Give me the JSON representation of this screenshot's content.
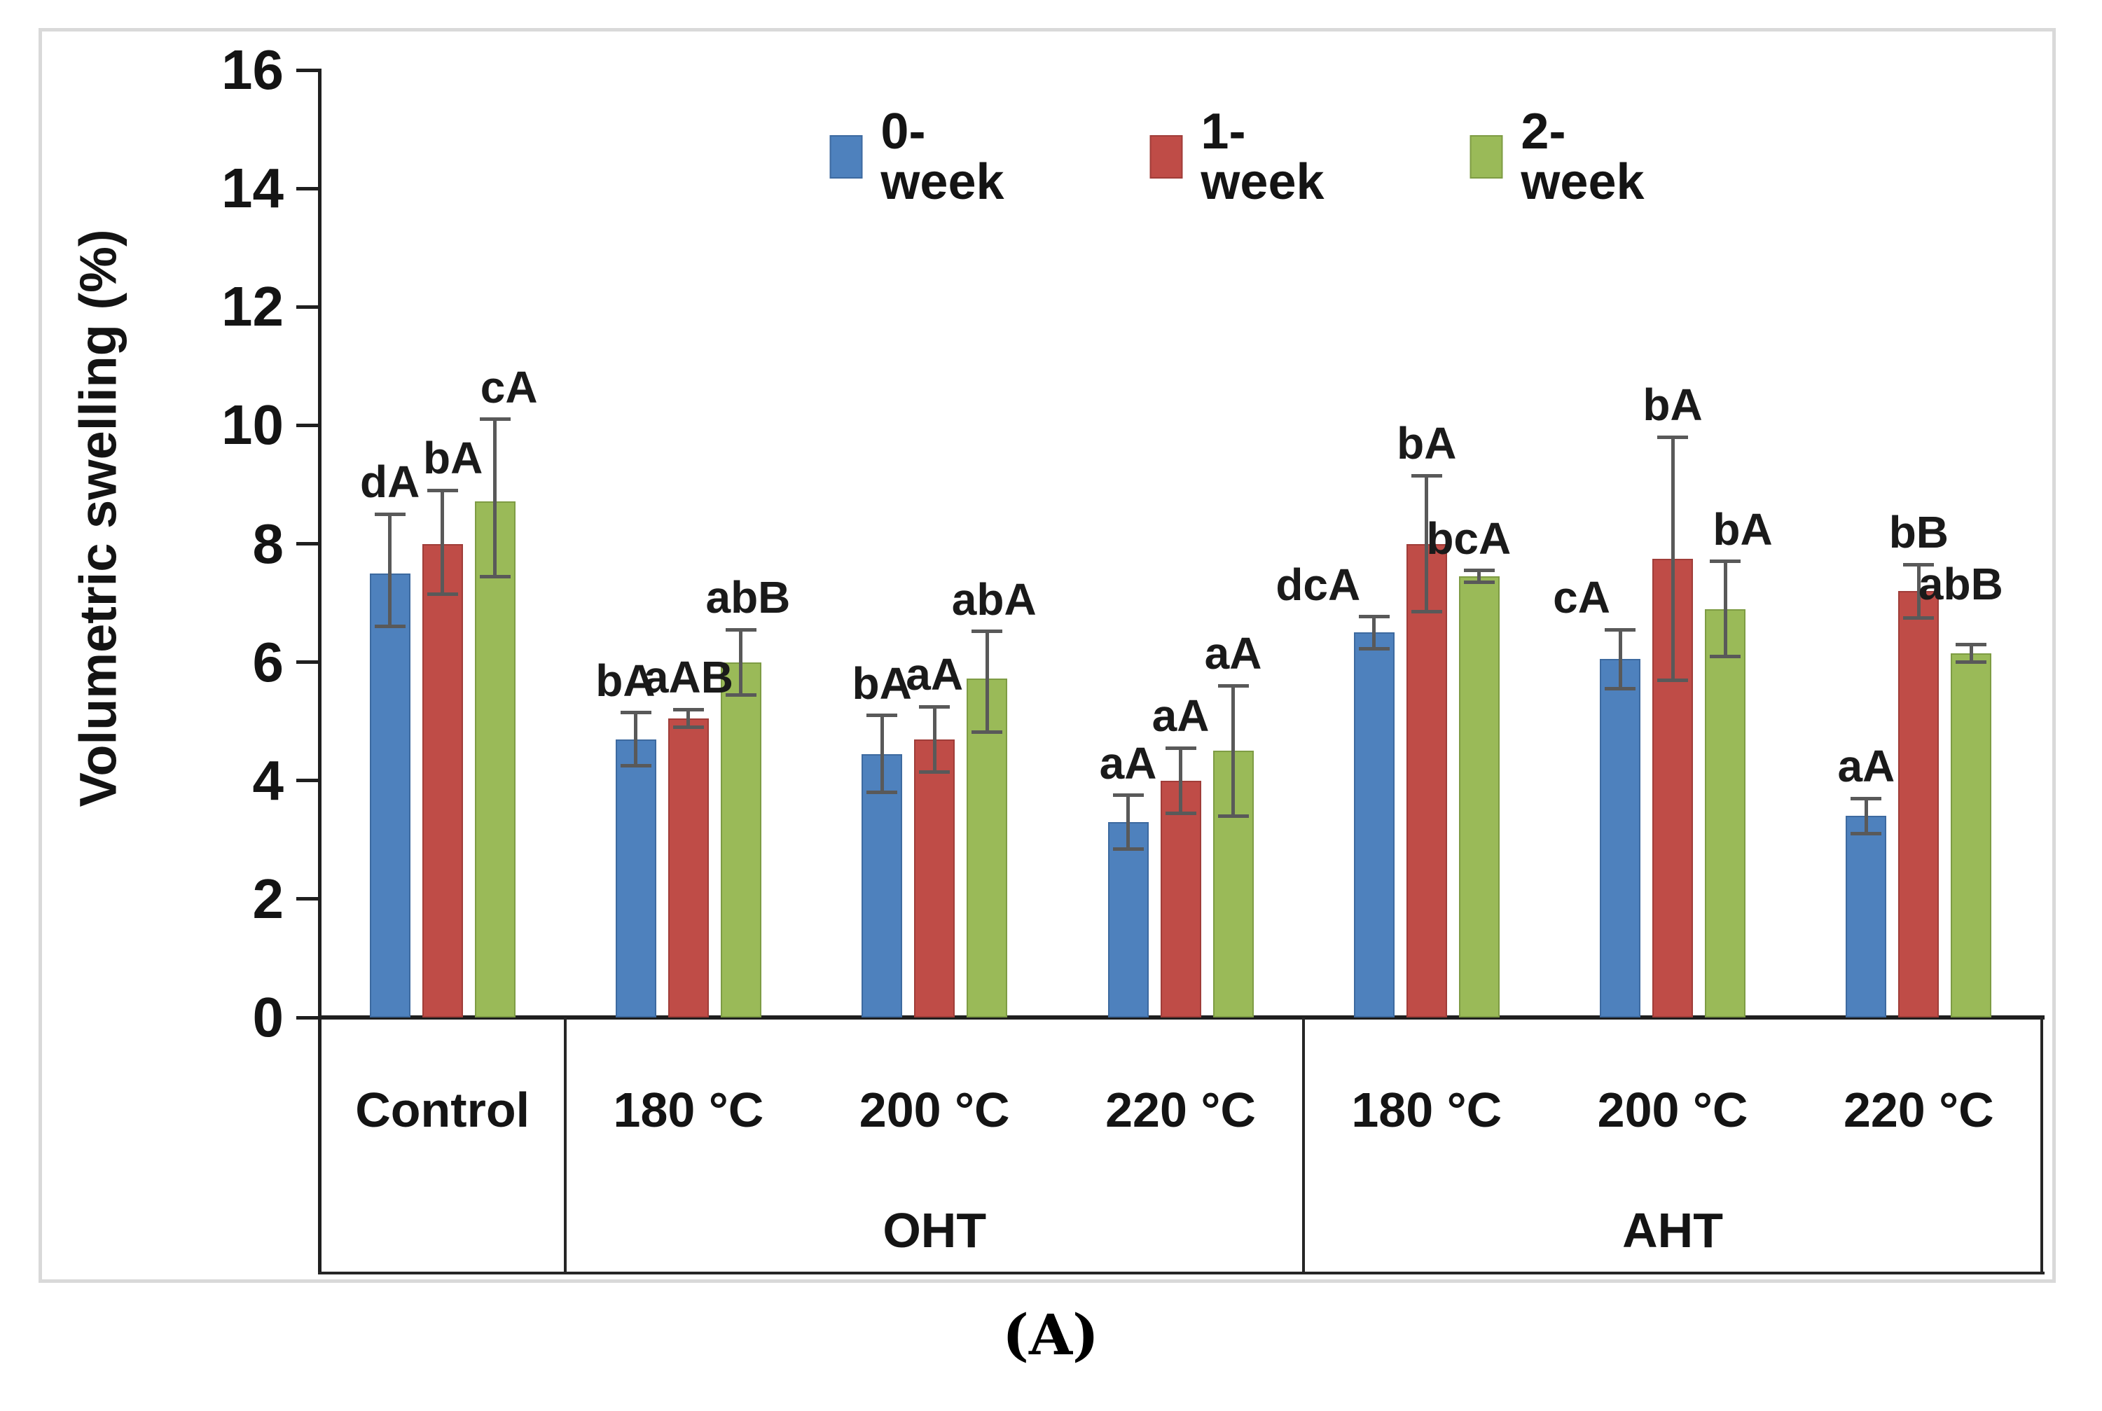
{
  "figure": {
    "caption": "(A)",
    "y_ticks": [
      "0",
      "2",
      "4",
      "6",
      "8",
      "10",
      "12",
      "14",
      "16"
    ],
    "colors": {
      "series": [
        "#4e81bd",
        "#bf4c47",
        "#9aba58"
      ],
      "series_borders": [
        "#3d6aa0",
        "#a03d39",
        "#7e9c44"
      ],
      "error_bar": "#595959",
      "axis": "#1f1f1f",
      "figure_border": "#d9d9d9"
    }
  },
  "chart_data": {
    "type": "bar",
    "title": "",
    "xlabel": "",
    "ylabel": "Volumetric swelling (%)",
    "ylim": [
      0,
      16
    ],
    "y_tick_step": 2,
    "grid": false,
    "legend_position": "top-center",
    "categories": [
      "Control",
      "180 °C",
      "200 °C",
      "220 °C",
      "180 °C",
      "200 °C",
      "220 °C"
    ],
    "category_groups": [
      {
        "label": "OHT",
        "start": 1,
        "end": 3
      },
      {
        "label": "AHT",
        "start": 4,
        "end": 6
      }
    ],
    "series": [
      {
        "name": "0-week",
        "color": "#4e81bd",
        "values": [
          7.5,
          4.7,
          4.45,
          3.3,
          6.5,
          6.05,
          3.4
        ],
        "err_up": [
          1.0,
          0.45,
          0.65,
          0.45,
          0.27,
          0.5,
          0.3
        ],
        "err_down": [
          0.9,
          0.45,
          0.65,
          0.45,
          0.27,
          0.5,
          0.3
        ],
        "labels": [
          "dA",
          "bA",
          "bA",
          "aA",
          "dcA",
          "cA",
          "aA"
        ],
        "label_dx": [
          0,
          -15,
          0,
          0,
          -80,
          -55,
          0
        ],
        "label_dy": [
          0,
          0,
          0,
          0,
          0,
          0,
          0
        ]
      },
      {
        "name": "1-week",
        "color": "#bf4c47",
        "values": [
          8.0,
          5.05,
          4.7,
          4.0,
          8.0,
          7.75,
          7.2
        ],
        "err_up": [
          0.9,
          0.15,
          0.55,
          0.55,
          1.15,
          2.05,
          0.45
        ],
        "err_down": [
          0.85,
          0.15,
          0.55,
          0.55,
          1.15,
          2.05,
          0.45
        ],
        "labels": [
          "bA",
          "aAB",
          "aA",
          "aA",
          "bA",
          "bA",
          "bB"
        ],
        "label_dx": [
          15,
          0,
          0,
          0,
          0,
          0,
          0
        ],
        "label_dy": [
          0,
          0,
          0,
          0,
          0,
          0,
          0
        ]
      },
      {
        "name": "2-week",
        "color": "#9aba58",
        "values": [
          8.72,
          6.0,
          5.72,
          4.5,
          7.45,
          6.9,
          6.15
        ],
        "err_up": [
          1.38,
          0.55,
          0.8,
          1.1,
          0.1,
          0.8,
          0.15
        ],
        "err_down": [
          1.27,
          0.55,
          0.9,
          1.1,
          0.1,
          0.8,
          0.15
        ],
        "labels": [
          "cA",
          "abB",
          "abA",
          "aA",
          "bcA",
          "bA",
          "abB"
        ],
        "label_dx": [
          20,
          10,
          10,
          0,
          -15,
          25,
          -15
        ],
        "label_dy": [
          0,
          0,
          0,
          0,
          0,
          0,
          -40
        ]
      }
    ]
  }
}
